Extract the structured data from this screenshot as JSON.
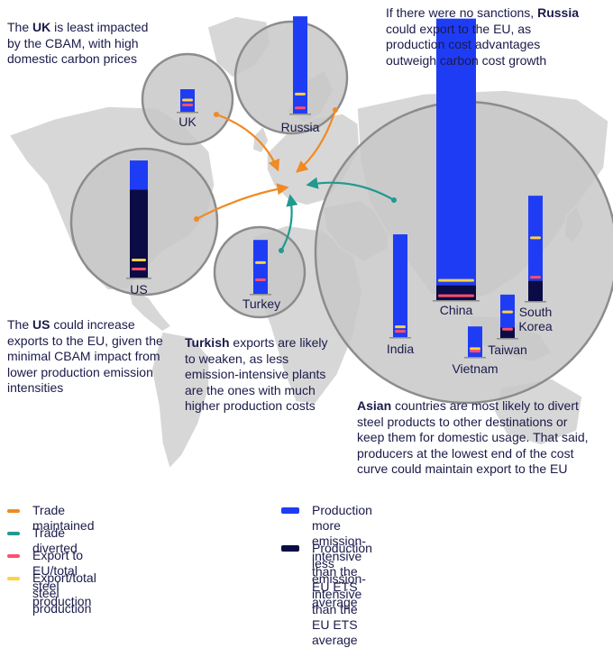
{
  "colors": {
    "more_intensive": "#1f3cf5",
    "less_intensive": "#0b0b45",
    "export_eu": "#ff4f6d",
    "export_total": "#ffd23f",
    "trade_maintained": "#f08a24",
    "trade_diverted": "#1f9a8f",
    "circle_fill": "#c8c8c8",
    "circle_stroke": "#8c8c8c",
    "land": "#d7d7d7"
  },
  "annotations": {
    "uk": {
      "pre": "The ",
      "bold": "UK",
      "post": " is least impacted by the CBAM, with high domestic carbon prices"
    },
    "russia": {
      "pre": "If there were no sanctions, ",
      "bold": "Russia",
      "post": " could export to the EU, as production cost advantages outweigh carbon cost growth"
    },
    "us": {
      "pre": "The ",
      "bold": "US",
      "post": " could increase exports to the EU, given the minimal CBAM impact from lower production emission intensities"
    },
    "turkey": {
      "pre": "",
      "bold": "Turkish",
      "post": " exports are likely to weaken, as less emission-intensive plants are the ones with much higher production costs"
    },
    "asia": {
      "pre": "",
      "bold": "Asian",
      "post": " countries are most likely to divert steel products to other destinations or keep them for domestic usage. That said, producers at the lowest end of the cost curve could maintain export to the EU"
    }
  },
  "countries": [
    {
      "name": "UK",
      "more": 25,
      "less": 0,
      "export_total": 0.52,
      "export_eu": 0.18,
      "flow": "maintained"
    },
    {
      "name": "Russia",
      "more": 83,
      "less": 0,
      "export_total": 0.2,
      "export_eu": 0.03,
      "flow": "maintained"
    },
    {
      "name": "US",
      "more": 28,
      "less": 85,
      "export_total": 0.15,
      "export_eu": 0.05,
      "flow": "maintained"
    },
    {
      "name": "Turkey",
      "more": 46,
      "less": 0,
      "export_total": 0.58,
      "export_eu": 0.21,
      "flow": "diverted"
    },
    {
      "name": "China",
      "more": 216,
      "less": 12,
      "export_total": 0.07,
      "export_eu": 0.006,
      "flow": "maintained"
    },
    {
      "name": "India",
      "more": 76,
      "less": 0,
      "export_total": 0.1,
      "export_eu": 0.03,
      "flow": "diverted"
    },
    {
      "name": "Vietnam",
      "more": 26,
      "less": 0,
      "export_total": 0.27,
      "export_eu": 0.1,
      "flow": "diverted"
    },
    {
      "name": "Taiwan",
      "more": 28,
      "less": 9,
      "export_total": 0.6,
      "export_eu": 0.14,
      "flow": "diverted"
    },
    {
      "name": "South Korea",
      "more": 80,
      "less": 19,
      "export_total": 0.6,
      "export_eu": 0.2,
      "flow": "diverted"
    }
  ],
  "labels": {
    "uk": "UK",
    "russia": "Russia",
    "us": "US",
    "turkey": "Turkey",
    "china": "China",
    "india": "India",
    "vietnam": "Vietnam",
    "taiwan": "Taiwan",
    "south_korea_1": "South",
    "south_korea_2": "Korea"
  },
  "legend": {
    "trade_maintained": "Trade maintained",
    "trade_diverted": "Trade diverted",
    "export_eu": "Export to EU/total steel production",
    "export_total": "Export/total steel production",
    "more_intensive_1": "Production more emission-intensive",
    "more_intensive_2": "than the EU ETS average",
    "less_intensive_1": "Production less emission-intensive",
    "less_intensive_2": "than the EU ETS average"
  }
}
